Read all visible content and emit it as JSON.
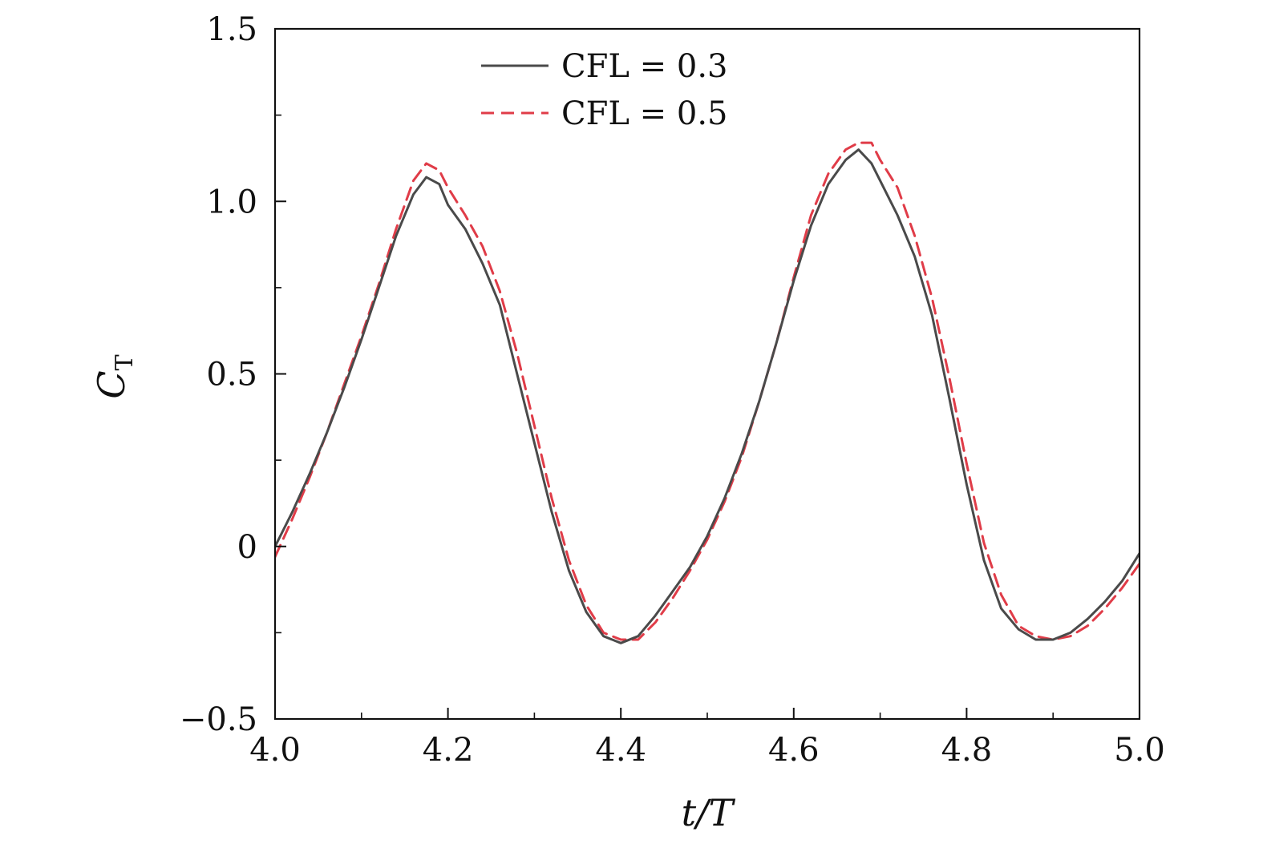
{
  "chart_data": {
    "type": "line",
    "xlabel": "t/T",
    "ylabel_main": "C",
    "ylabel_sub": "T",
    "xlim": [
      4.0,
      5.0
    ],
    "ylim": [
      -0.5,
      1.5
    ],
    "x_major_ticks": [
      4.0,
      4.2,
      4.4,
      4.6,
      4.8,
      5.0
    ],
    "x_tick_labels": [
      "4.0",
      "4.2",
      "4.4",
      "4.6",
      "4.8",
      "5.0"
    ],
    "x_minor_ticks": [
      4.1,
      4.3,
      4.5,
      4.7,
      4.9
    ],
    "y_major_ticks": [
      -0.5,
      0.0,
      0.5,
      1.0,
      1.5
    ],
    "y_tick_labels": [
      "−0.5",
      "0",
      "0.5",
      "1.0",
      "1.5"
    ],
    "y_minor_ticks": [
      -0.25,
      0.25,
      0.75,
      1.25
    ],
    "grid": false,
    "legend_position": "top-center",
    "series": [
      {
        "name": "CFL = 0.3",
        "color": "#4a4a4a",
        "style": "solid",
        "points": [
          [
            4.0,
            0.0
          ],
          [
            4.02,
            0.1
          ],
          [
            4.04,
            0.21
          ],
          [
            4.06,
            0.33
          ],
          [
            4.08,
            0.46
          ],
          [
            4.1,
            0.6
          ],
          [
            4.12,
            0.75
          ],
          [
            4.14,
            0.9
          ],
          [
            4.16,
            1.02
          ],
          [
            4.175,
            1.07
          ],
          [
            4.19,
            1.05
          ],
          [
            4.2,
            0.99
          ],
          [
            4.22,
            0.92
          ],
          [
            4.24,
            0.82
          ],
          [
            4.26,
            0.7
          ],
          [
            4.28,
            0.5
          ],
          [
            4.3,
            0.3
          ],
          [
            4.32,
            0.1
          ],
          [
            4.34,
            -0.07
          ],
          [
            4.36,
            -0.19
          ],
          [
            4.38,
            -0.26
          ],
          [
            4.4,
            -0.28
          ],
          [
            4.42,
            -0.26
          ],
          [
            4.44,
            -0.2
          ],
          [
            4.46,
            -0.13
          ],
          [
            4.48,
            -0.06
          ],
          [
            4.5,
            0.03
          ],
          [
            4.52,
            0.14
          ],
          [
            4.54,
            0.27
          ],
          [
            4.56,
            0.42
          ],
          [
            4.58,
            0.59
          ],
          [
            4.6,
            0.77
          ],
          [
            4.62,
            0.93
          ],
          [
            4.64,
            1.05
          ],
          [
            4.66,
            1.12
          ],
          [
            4.675,
            1.15
          ],
          [
            4.69,
            1.11
          ],
          [
            4.7,
            1.06
          ],
          [
            4.72,
            0.96
          ],
          [
            4.74,
            0.84
          ],
          [
            4.76,
            0.67
          ],
          [
            4.78,
            0.43
          ],
          [
            4.8,
            0.18
          ],
          [
            4.82,
            -0.04
          ],
          [
            4.84,
            -0.18
          ],
          [
            4.86,
            -0.24
          ],
          [
            4.88,
            -0.27
          ],
          [
            4.9,
            -0.27
          ],
          [
            4.92,
            -0.25
          ],
          [
            4.94,
            -0.21
          ],
          [
            4.96,
            -0.16
          ],
          [
            4.98,
            -0.1
          ],
          [
            5.0,
            -0.02
          ]
        ]
      },
      {
        "name": "CFL = 0.5",
        "color": "#e03c48",
        "style": "dashed",
        "points": [
          [
            4.0,
            -0.03
          ],
          [
            4.02,
            0.08
          ],
          [
            4.04,
            0.2
          ],
          [
            4.06,
            0.33
          ],
          [
            4.08,
            0.47
          ],
          [
            4.1,
            0.61
          ],
          [
            4.12,
            0.76
          ],
          [
            4.14,
            0.92
          ],
          [
            4.16,
            1.06
          ],
          [
            4.175,
            1.11
          ],
          [
            4.19,
            1.09
          ],
          [
            4.2,
            1.04
          ],
          [
            4.22,
            0.96
          ],
          [
            4.24,
            0.87
          ],
          [
            4.26,
            0.74
          ],
          [
            4.28,
            0.56
          ],
          [
            4.3,
            0.35
          ],
          [
            4.32,
            0.14
          ],
          [
            4.34,
            -0.04
          ],
          [
            4.36,
            -0.17
          ],
          [
            4.38,
            -0.25
          ],
          [
            4.4,
            -0.27
          ],
          [
            4.42,
            -0.27
          ],
          [
            4.44,
            -0.22
          ],
          [
            4.46,
            -0.15
          ],
          [
            4.48,
            -0.07
          ],
          [
            4.5,
            0.02
          ],
          [
            4.52,
            0.13
          ],
          [
            4.54,
            0.26
          ],
          [
            4.56,
            0.42
          ],
          [
            4.58,
            0.59
          ],
          [
            4.6,
            0.78
          ],
          [
            4.62,
            0.96
          ],
          [
            4.64,
            1.08
          ],
          [
            4.66,
            1.15
          ],
          [
            4.675,
            1.17
          ],
          [
            4.69,
            1.17
          ],
          [
            4.7,
            1.12
          ],
          [
            4.72,
            1.04
          ],
          [
            4.74,
            0.9
          ],
          [
            4.76,
            0.72
          ],
          [
            4.78,
            0.49
          ],
          [
            4.8,
            0.24
          ],
          [
            4.82,
            0.01
          ],
          [
            4.84,
            -0.14
          ],
          [
            4.86,
            -0.23
          ],
          [
            4.88,
            -0.26
          ],
          [
            4.9,
            -0.27
          ],
          [
            4.92,
            -0.26
          ],
          [
            4.94,
            -0.23
          ],
          [
            4.96,
            -0.18
          ],
          [
            4.98,
            -0.12
          ],
          [
            5.0,
            -0.05
          ]
        ]
      }
    ]
  }
}
